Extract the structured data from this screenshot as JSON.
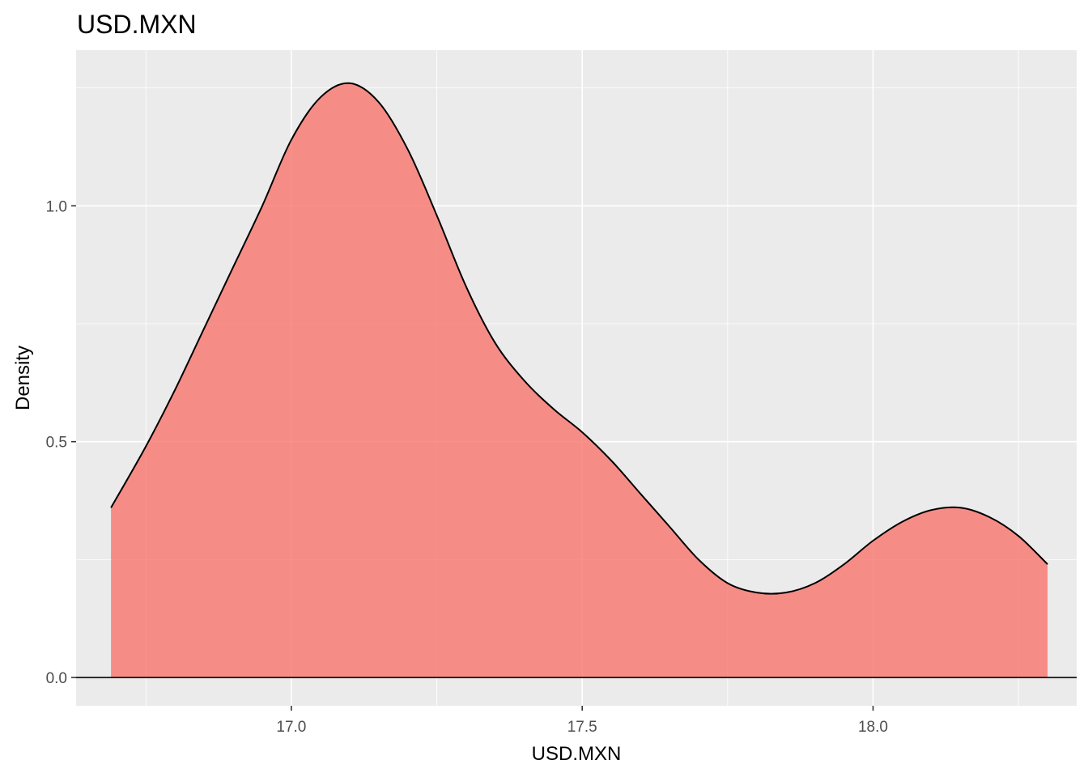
{
  "chart_data": {
    "type": "area",
    "subtype": "density",
    "title": "USD.MXN",
    "xlabel": "USD.MXN",
    "ylabel": "Density",
    "xlim": [
      16.63,
      18.35
    ],
    "ylim": [
      -0.06,
      1.33
    ],
    "x_ticks": [
      17.0,
      17.5,
      18.0
    ],
    "x_tick_labels": [
      "17.0",
      "17.5",
      "18.0"
    ],
    "y_ticks": [
      0.0,
      0.5,
      1.0
    ],
    "y_tick_labels": [
      "0.0",
      "0.5",
      "1.0"
    ],
    "grid": true,
    "fill_color": "#F8766D",
    "fill_opacity": 0.8,
    "line_color": "#000000",
    "panel_color": "#EBEBEB",
    "series": [
      {
        "x": [
          16.69,
          16.75,
          16.8,
          16.85,
          16.9,
          16.95,
          17.0,
          17.05,
          17.1,
          17.15,
          17.2,
          17.25,
          17.3,
          17.35,
          17.4,
          17.45,
          17.5,
          17.55,
          17.6,
          17.65,
          17.7,
          17.75,
          17.8,
          17.85,
          17.9,
          17.95,
          18.0,
          18.05,
          18.1,
          18.15,
          18.2,
          18.25,
          18.3
        ],
        "y": [
          0.36,
          0.49,
          0.61,
          0.74,
          0.87,
          1.0,
          1.14,
          1.23,
          1.26,
          1.22,
          1.12,
          0.98,
          0.83,
          0.71,
          0.63,
          0.57,
          0.52,
          0.46,
          0.39,
          0.32,
          0.25,
          0.2,
          0.18,
          0.18,
          0.2,
          0.24,
          0.29,
          0.33,
          0.355,
          0.36,
          0.34,
          0.3,
          0.24
        ]
      }
    ]
  }
}
